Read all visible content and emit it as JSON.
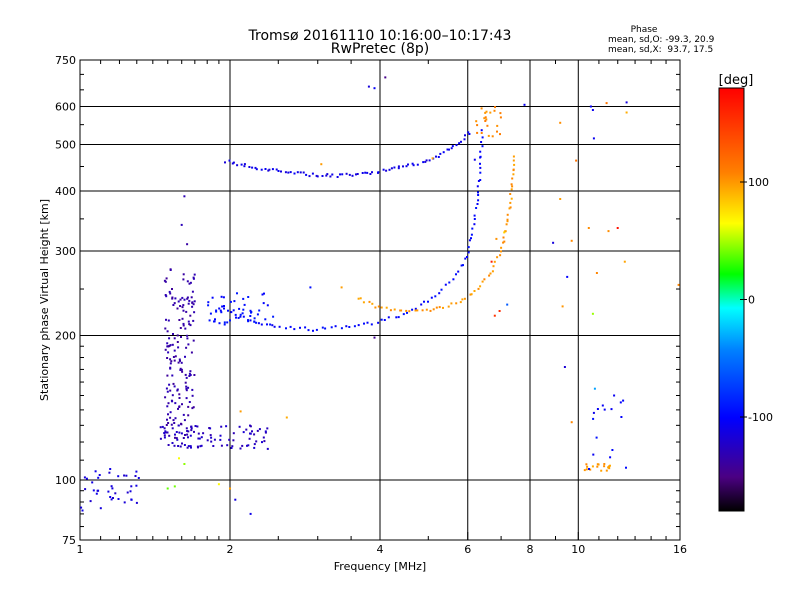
{
  "chart_data": {
    "type": "scatter",
    "title": "Tromsø 20161110 10:16:00–10:17:43",
    "subtitle": "RwPretec (8p)",
    "xlabel": "Frequency [MHz]",
    "ylabel": "Stationary phase Virtual Height [km]",
    "x_scale": "log",
    "y_scale": "log",
    "xlim": [
      1,
      16
    ],
    "ylim": [
      75,
      750
    ],
    "x_ticks": [
      1,
      2,
      4,
      6,
      8,
      10,
      16
    ],
    "x_tick_labels": [
      "1",
      "2",
      "4",
      "6",
      "8",
      "10",
      "16"
    ],
    "y_ticks": [
      75,
      100,
      200,
      300,
      400,
      500,
      600,
      750
    ],
    "y_tick_labels": [
      "75",
      "100",
      "200",
      "300",
      "400",
      "500",
      "600",
      "750"
    ],
    "grid": true,
    "stats": {
      "heading": "Phase",
      "o_line": "mean, sd,O: -99.3, 20.9",
      "x_line": "mean, sd,X:  93.7, 17.5"
    },
    "colorbar": {
      "label": "[deg]",
      "range": [
        -180,
        180
      ],
      "ticks": [
        100,
        0,
        -100
      ],
      "tick_labels": [
        "100",
        "0",
        "-100"
      ]
    },
    "traces": [
      {
        "kind": "curve",
        "phase": -100,
        "n": 90,
        "pts": [
          [
            1.82,
            222
          ],
          [
            1.95,
            228
          ],
          [
            2.1,
            220
          ],
          [
            2.3,
            212
          ],
          [
            2.6,
            207
          ],
          [
            3.0,
            206
          ],
          [
            3.5,
            209
          ],
          [
            4.0,
            214
          ],
          [
            4.5,
            222
          ],
          [
            5.0,
            236
          ],
          [
            5.4,
            252
          ],
          [
            5.8,
            276
          ],
          [
            6.0,
            298
          ],
          [
            6.15,
            330
          ],
          [
            6.25,
            370
          ],
          [
            6.32,
            420
          ],
          [
            6.38,
            480
          ],
          [
            6.42,
            540
          ]
        ]
      },
      {
        "kind": "curve",
        "phase": 100,
        "n": 70,
        "pts": [
          [
            3.6,
            240
          ],
          [
            3.9,
            230
          ],
          [
            4.3,
            225
          ],
          [
            4.8,
            225
          ],
          [
            5.3,
            228
          ],
          [
            5.8,
            236
          ],
          [
            6.3,
            250
          ],
          [
            6.7,
            272
          ],
          [
            7.0,
            300
          ],
          [
            7.2,
            340
          ],
          [
            7.32,
            390
          ],
          [
            7.4,
            440
          ],
          [
            7.43,
            480
          ]
        ]
      },
      {
        "kind": "curve",
        "phase": -110,
        "n": 85,
        "pts": [
          [
            1.95,
            462
          ],
          [
            2.2,
            450
          ],
          [
            2.5,
            440
          ],
          [
            2.9,
            432
          ],
          [
            3.3,
            430
          ],
          [
            3.8,
            436
          ],
          [
            4.3,
            446
          ],
          [
            4.8,
            458
          ],
          [
            5.2,
            472
          ],
          [
            5.6,
            492
          ],
          [
            5.9,
            515
          ],
          [
            6.1,
            535
          ]
        ]
      },
      {
        "kind": "cloud",
        "phase": -135,
        "n": 170,
        "x": [
          1.48,
          1.7
        ],
        "y": [
          122,
          275
        ]
      },
      {
        "kind": "cloud",
        "phase": -125,
        "n": 90,
        "x": [
          1.45,
          2.4
        ],
        "y": [
          116,
          130
        ]
      },
      {
        "kind": "cloud",
        "phase": -115,
        "n": 40,
        "x": [
          1.0,
          1.32
        ],
        "y": [
          86,
          106
        ]
      },
      {
        "kind": "cloud",
        "phase": -95,
        "n": 50,
        "x": [
          1.8,
          2.45
        ],
        "y": [
          210,
          245
        ]
      },
      {
        "kind": "cloud",
        "phase": 105,
        "n": 22,
        "x": [
          6.2,
          7.0
        ],
        "y": [
          520,
          600
        ]
      },
      {
        "kind": "cloud",
        "phase": 100,
        "n": 18,
        "x": [
          10.3,
          11.6
        ],
        "y": [
          104,
          108
        ]
      },
      {
        "kind": "cloud",
        "phase": -100,
        "n": 14,
        "x": [
          10.5,
          12.5
        ],
        "y": [
          103,
          150
        ]
      }
    ],
    "points": [
      {
        "x": 1.62,
        "y": 390,
        "phase": -135
      },
      {
        "x": 1.6,
        "y": 340,
        "phase": -130
      },
      {
        "x": 1.64,
        "y": 310,
        "phase": -135
      },
      {
        "x": 3.8,
        "y": 660,
        "phase": -110
      },
      {
        "x": 3.9,
        "y": 655,
        "phase": -110
      },
      {
        "x": 4.1,
        "y": 690,
        "phase": -150
      },
      {
        "x": 7.8,
        "y": 605,
        "phase": -100
      },
      {
        "x": 9.2,
        "y": 555,
        "phase": 100
      },
      {
        "x": 9.2,
        "y": 385,
        "phase": 100
      },
      {
        "x": 9.9,
        "y": 463,
        "phase": 110
      },
      {
        "x": 10.6,
        "y": 600,
        "phase": -100
      },
      {
        "x": 10.7,
        "y": 590,
        "phase": -100
      },
      {
        "x": 10.75,
        "y": 515,
        "phase": -110
      },
      {
        "x": 11.4,
        "y": 610,
        "phase": 110
      },
      {
        "x": 12.5,
        "y": 612,
        "phase": -120
      },
      {
        "x": 12.5,
        "y": 583,
        "phase": 100
      },
      {
        "x": 10.5,
        "y": 335,
        "phase": 100
      },
      {
        "x": 11.5,
        "y": 330,
        "phase": 100
      },
      {
        "x": 12.0,
        "y": 335,
        "phase": 170
      },
      {
        "x": 9.7,
        "y": 315,
        "phase": 100
      },
      {
        "x": 9.5,
        "y": 265,
        "phase": -100
      },
      {
        "x": 10.9,
        "y": 270,
        "phase": 100
      },
      {
        "x": 10.7,
        "y": 222,
        "phase": 50
      },
      {
        "x": 12.4,
        "y": 285,
        "phase": 100
      },
      {
        "x": 15.9,
        "y": 255,
        "phase": 100
      },
      {
        "x": 8.9,
        "y": 312,
        "phase": -110
      },
      {
        "x": 9.4,
        "y": 172,
        "phase": -120
      },
      {
        "x": 10.8,
        "y": 155,
        "phase": -30
      },
      {
        "x": 10.75,
        "y": 138,
        "phase": -110
      },
      {
        "x": 11.2,
        "y": 143,
        "phase": -100
      },
      {
        "x": 9.7,
        "y": 132,
        "phase": 100
      },
      {
        "x": 9.3,
        "y": 230,
        "phase": 100
      },
      {
        "x": 7.2,
        "y": 232,
        "phase": -60
      },
      {
        "x": 7.1,
        "y": 328,
        "phase": 80
      },
      {
        "x": 6.85,
        "y": 318,
        "phase": 100
      },
      {
        "x": 6.7,
        "y": 285,
        "phase": 160
      },
      {
        "x": 6.95,
        "y": 225,
        "phase": 160
      },
      {
        "x": 6.8,
        "y": 220,
        "phase": 150
      },
      {
        "x": 2.9,
        "y": 252,
        "phase": -100
      },
      {
        "x": 3.35,
        "y": 252,
        "phase": 100
      },
      {
        "x": 3.05,
        "y": 455,
        "phase": 100
      },
      {
        "x": 3.9,
        "y": 198,
        "phase": -150
      },
      {
        "x": 2.0,
        "y": 96,
        "phase": 100
      },
      {
        "x": 1.9,
        "y": 98,
        "phase": 70
      },
      {
        "x": 2.2,
        "y": 85,
        "phase": -110
      },
      {
        "x": 2.05,
        "y": 91,
        "phase": -110
      },
      {
        "x": 1.55,
        "y": 97,
        "phase": 40
      },
      {
        "x": 1.5,
        "y": 96,
        "phase": 40
      },
      {
        "x": 2.6,
        "y": 135,
        "phase": 100
      },
      {
        "x": 2.1,
        "y": 139,
        "phase": 100
      },
      {
        "x": 1.58,
        "y": 111,
        "phase": 70
      },
      {
        "x": 1.62,
        "y": 108,
        "phase": 40
      },
      {
        "x": 5.1,
        "y": 468,
        "phase": 100
      },
      {
        "x": 6.2,
        "y": 465,
        "phase": -110
      }
    ]
  }
}
